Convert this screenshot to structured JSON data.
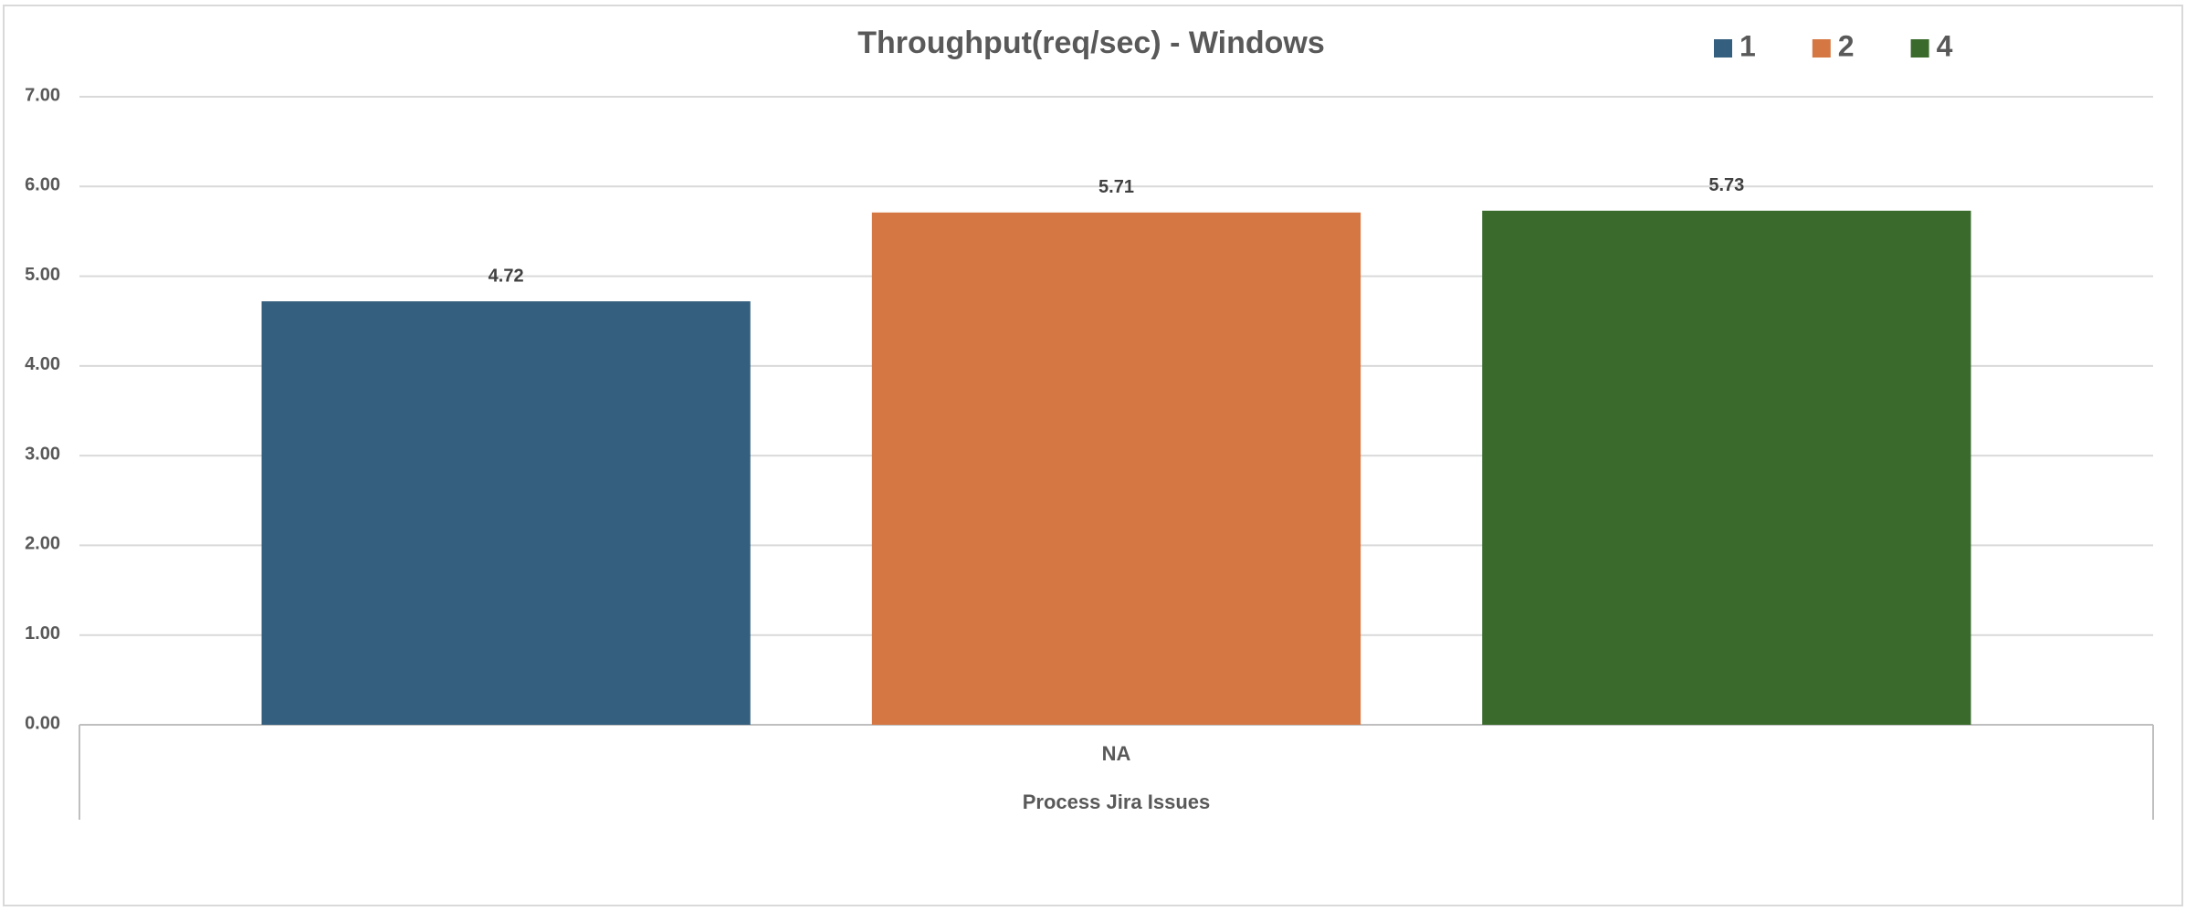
{
  "chart_data": {
    "type": "bar",
    "title": "Throughput(req/sec) - Windows",
    "categories": [
      "NA"
    ],
    "category_groups": [
      "Process Jira Issues"
    ],
    "series": [
      {
        "name": "1",
        "color": "#355f7e",
        "values": [
          4.72
        ]
      },
      {
        "name": "2",
        "color": "#d57742",
        "values": [
          5.71
        ]
      },
      {
        "name": "4",
        "color": "#3a6b2d",
        "values": [
          5.73
        ]
      }
    ],
    "ylim": [
      0,
      7
    ],
    "yticks": [
      {
        "value": 0,
        "label": "0.00"
      },
      {
        "value": 1,
        "label": "1.00"
      },
      {
        "value": 2,
        "label": "2.00"
      },
      {
        "value": 3,
        "label": "3.00"
      },
      {
        "value": 4,
        "label": "4.00"
      },
      {
        "value": 5,
        "label": "5.00"
      },
      {
        "value": 6,
        "label": "6.00"
      },
      {
        "value": 7,
        "label": "7.00"
      }
    ],
    "grid": true,
    "legend": "top-right"
  }
}
